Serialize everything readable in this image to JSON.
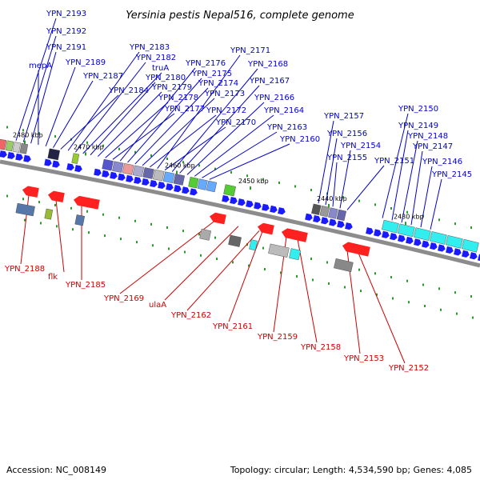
{
  "title": "Yersinia pestis Nepal516, complete genome",
  "footer": {
    "accession": "Accession: NC_008149",
    "summary": "Topology: circular; Length: 4,534,590 bp; Genes: 4,085"
  },
  "colors": {
    "forward_label": "#0000cc",
    "reverse_label": "#cc0000",
    "forward_gene": "#1a1aff",
    "reverse_gene": "#ff2020",
    "backbone": "#8c8c8c",
    "tick": "#2a9a2a"
  },
  "ticks": [
    "2480 kbp",
    "2470 kbp",
    "2460 kbp",
    "2450 kbp",
    "2440 kbp",
    "2430 kbp"
  ],
  "forward_labels": [
    "YPN_2193",
    "YPN_2192",
    "YPN_2191",
    "mepA",
    "YPN_2189",
    "YPN_2187",
    "YPN_2184",
    "YPN_2183",
    "YPN_2182",
    "truA",
    "YPN_2180",
    "YPN_2179",
    "YPN_2178",
    "YPN_2177",
    "YPN_2176",
    "YPN_2175",
    "YPN_2174",
    "YPN_2173",
    "YPN_2172",
    "YPN_2171",
    "YPN_2170",
    "YPN_2168",
    "YPN_2167",
    "YPN_2166",
    "YPN_2164",
    "YPN_2163",
    "YPN_2160",
    "YPN_2157",
    "YPN_2156",
    "YPN_2155",
    "YPN_2154",
    "YPN_2151",
    "YPN_2150",
    "YPN_2149",
    "YPN_2148",
    "YPN_2147",
    "YPN_2146",
    "YPN_2145"
  ],
  "reverse_labels": [
    "YPN_2188",
    "flk",
    "YPN_2185",
    "YPN_2169",
    "ulaA",
    "YPN_2162",
    "YPN_2161",
    "YPN_2159",
    "YPN_2158",
    "YPN_2153",
    "YPN_2152"
  ]
}
